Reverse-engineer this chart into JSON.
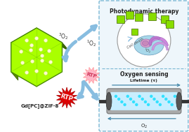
{
  "bg_color": "#ffffff",
  "box_edge_color": "#7ab8d4",
  "panel_title_pdt": "Photodynamic therapy",
  "panel_title_os": "Oxygen sensing",
  "label_zif8": "Gd[PC]@ZIF-8",
  "label_rtp_red": "RTP",
  "label_rtp_pink": "RTP",
  "label_3o2": "$^{3}$O$_{2}$",
  "label_1o2": "$^{1}$O$_{2}$",
  "label_lifetime": "Lifetime (τ)",
  "label_o2": "O$_{2}$",
  "label_cell_death": "Cell death",
  "label_1o2_circle": "$^{1}$O$_{2}$",
  "arrow_color": "#88bde0",
  "hex_face_color": "#aaff00",
  "hex_shade_color": "#5a9000",
  "hex_dark_color": "#3a6800",
  "hex_edge_color": "#4a8800",
  "rtp_red_color": "#dd0000",
  "rtp_pink_color": "#ffaabb",
  "figsize": [
    2.69,
    1.89
  ],
  "dpi": 100
}
